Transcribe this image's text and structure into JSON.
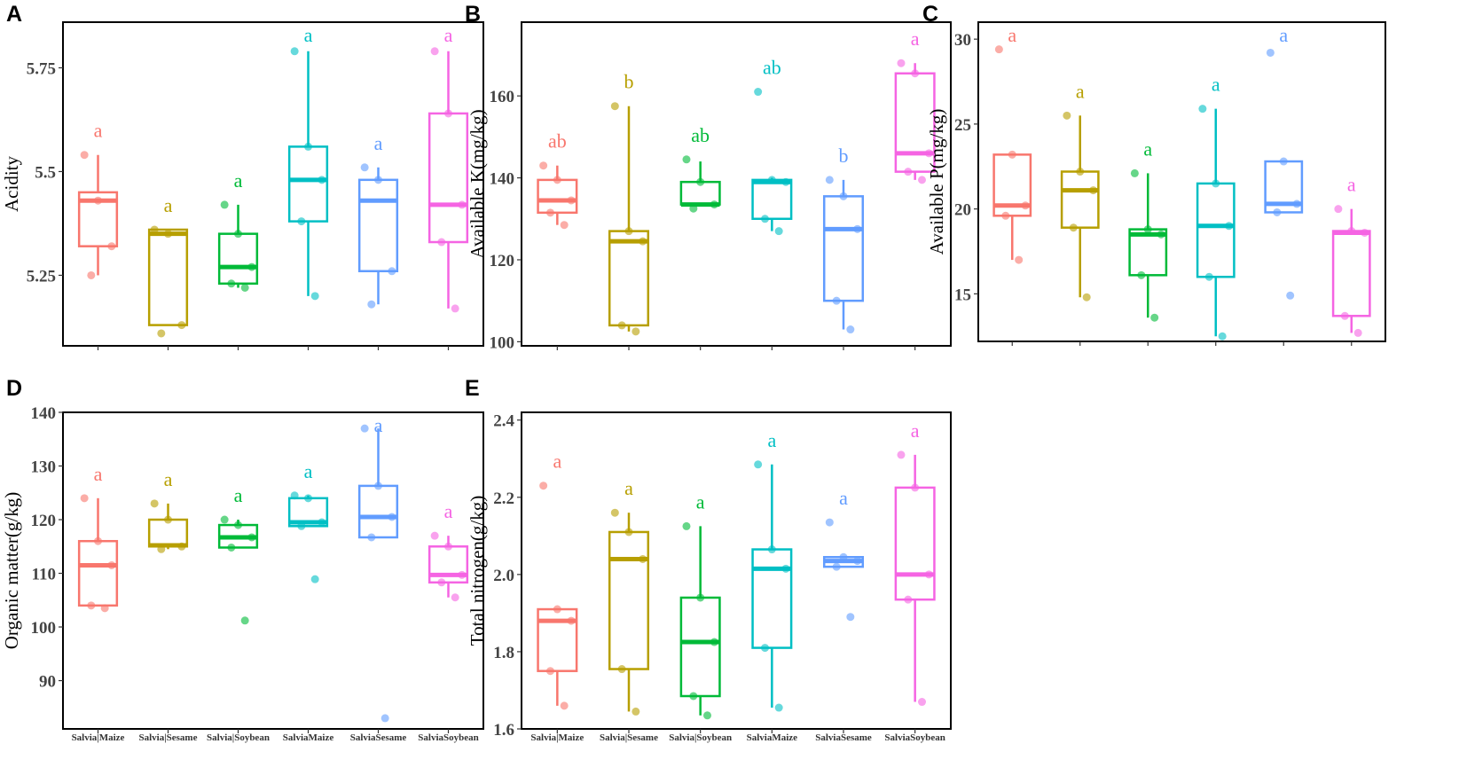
{
  "categories": [
    "Salvia|Maize",
    "Salvia|Sesame",
    "Salvia|Soybean",
    "SalviaMaize",
    "SalviaSesame",
    "SalviaSoybean"
  ],
  "colors": [
    "#F8766D",
    "#B79F00",
    "#00BA38",
    "#00BFC4",
    "#619CFF",
    "#F564E3"
  ],
  "chart_data": [
    {
      "panel": "A",
      "type": "box",
      "ylabel": "Acidity",
      "ylim": [
        5.08,
        5.86
      ],
      "yticks": [
        5.25,
        5.5,
        5.75
      ],
      "boxes": [
        {
          "q1": 5.32,
          "median": 5.43,
          "q3": 5.45,
          "wlow": 5.25,
          "whigh": 5.54,
          "points": [
            5.54,
            5.43,
            5.32,
            5.25
          ],
          "letter": "a"
        },
        {
          "q1": 5.13,
          "median": 5.35,
          "q3": 5.36,
          "wlow": 5.13,
          "whigh": 5.36,
          "points": [
            5.36,
            5.35,
            5.13,
            5.11
          ],
          "letter": "a"
        },
        {
          "q1": 5.23,
          "median": 5.27,
          "q3": 5.35,
          "wlow": 5.22,
          "whigh": 5.42,
          "points": [
            5.42,
            5.35,
            5.27,
            5.23,
            5.22
          ],
          "letter": "a"
        },
        {
          "q1": 5.38,
          "median": 5.48,
          "q3": 5.56,
          "wlow": 5.2,
          "whigh": 5.79,
          "points": [
            5.79,
            5.56,
            5.48,
            5.38,
            5.2
          ],
          "letter": "a"
        },
        {
          "q1": 5.26,
          "median": 5.43,
          "q3": 5.48,
          "wlow": 5.18,
          "whigh": 5.51,
          "points": [
            5.51,
            5.48,
            5.26,
            5.18
          ],
          "letter": "a"
        },
        {
          "q1": 5.33,
          "median": 5.42,
          "q3": 5.64,
          "wlow": 5.17,
          "whigh": 5.79,
          "points": [
            5.79,
            5.64,
            5.42,
            5.33,
            5.17
          ],
          "letter": "a"
        }
      ]
    },
    {
      "panel": "B",
      "type": "box",
      "ylabel": "Available K(mg/kg)",
      "ylim": [
        99,
        178
      ],
      "yticks": [
        100,
        120,
        140,
        160
      ],
      "boxes": [
        {
          "q1": 131.5,
          "median": 134.5,
          "q3": 139.5,
          "wlow": 128.5,
          "whigh": 143,
          "points": [
            143,
            139.5,
            134.5,
            131.5,
            128.5
          ],
          "letter": "ab"
        },
        {
          "q1": 104,
          "median": 124.5,
          "q3": 127,
          "wlow": 102.5,
          "whigh": 157.5,
          "points": [
            157.5,
            127,
            124.5,
            104,
            102.5
          ],
          "letter": "b"
        },
        {
          "q1": 133.5,
          "median": 133.5,
          "q3": 139,
          "wlow": 133.5,
          "whigh": 144,
          "points": [
            144.5,
            139,
            133.5,
            132.5
          ],
          "letter": "ab"
        },
        {
          "q1": 130,
          "median": 139,
          "q3": 139.5,
          "wlow": 127,
          "whigh": 140,
          "points": [
            161,
            139.5,
            139,
            130,
            127
          ],
          "letter": "ab"
        },
        {
          "q1": 110,
          "median": 127.5,
          "q3": 135.5,
          "wlow": 103,
          "whigh": 139.5,
          "points": [
            139.5,
            135.5,
            127.5,
            110,
            103
          ],
          "letter": "b"
        },
        {
          "q1": 141.5,
          "median": 146,
          "q3": 165.5,
          "wlow": 139.5,
          "whigh": 168,
          "points": [
            168,
            165.5,
            146,
            141.5,
            139.5
          ],
          "letter": "a"
        }
      ]
    },
    {
      "panel": "C",
      "type": "box",
      "ylabel": "Available P(mg/kg)",
      "ylim": [
        12.2,
        31
      ],
      "yticks": [
        15,
        20,
        25,
        30
      ],
      "boxes": [
        {
          "q1": 19.6,
          "median": 20.2,
          "q3": 23.2,
          "wlow": 17,
          "whigh": 23.2,
          "points": [
            29.4,
            23.2,
            20.2,
            19.6,
            17
          ],
          "letter": "a"
        },
        {
          "q1": 18.9,
          "median": 21.1,
          "q3": 22.2,
          "wlow": 14.8,
          "whigh": 25.5,
          "points": [
            25.5,
            22.2,
            21.1,
            18.9,
            14.8
          ],
          "letter": "a"
        },
        {
          "q1": 16.1,
          "median": 18.5,
          "q3": 18.8,
          "wlow": 13.6,
          "whigh": 22.1,
          "points": [
            22.1,
            18.8,
            18.5,
            16.1,
            13.6
          ],
          "letter": "a"
        },
        {
          "q1": 16,
          "median": 19,
          "q3": 21.5,
          "wlow": 12.5,
          "whigh": 25.9,
          "points": [
            25.9,
            21.5,
            19,
            16,
            12.5
          ],
          "letter": "a"
        },
        {
          "q1": 19.8,
          "median": 20.3,
          "q3": 22.8,
          "wlow": 19.8,
          "whigh": 22.8,
          "points": [
            29.2,
            22.8,
            20.3,
            19.8,
            14.9
          ],
          "letter": "a"
        },
        {
          "q1": 13.7,
          "median": 18.6,
          "q3": 18.7,
          "wlow": 12.7,
          "whigh": 20,
          "points": [
            20,
            18.7,
            18.6,
            13.7,
            12.7
          ],
          "letter": "a"
        }
      ]
    },
    {
      "panel": "D",
      "type": "box",
      "ylabel": "Organic matter(g/kg)",
      "ylim": [
        81,
        140
      ],
      "yticks": [
        90,
        100,
        110,
        120,
        130,
        140
      ],
      "boxes": [
        {
          "q1": 104,
          "median": 111.5,
          "q3": 116,
          "wlow": 104,
          "whigh": 124,
          "points": [
            124,
            116,
            111.5,
            104,
            103.5
          ],
          "letter": "a"
        },
        {
          "q1": 115,
          "median": 115.2,
          "q3": 120,
          "wlow": 114.5,
          "whigh": 123,
          "points": [
            123,
            120,
            115,
            114.5
          ],
          "letter": "a"
        },
        {
          "q1": 114.8,
          "median": 116.7,
          "q3": 119,
          "wlow": 114.8,
          "whigh": 120,
          "points": [
            120,
            119,
            116.7,
            114.8,
            101.2
          ],
          "letter": "a"
        },
        {
          "q1": 118.8,
          "median": 119.5,
          "q3": 124,
          "wlow": 118.8,
          "whigh": 124.5,
          "points": [
            124.5,
            124,
            119.5,
            118.8,
            108.9
          ],
          "letter": "a"
        },
        {
          "q1": 116.7,
          "median": 120.5,
          "q3": 126.3,
          "wlow": 116.7,
          "whigh": 137,
          "points": [
            137,
            126.3,
            120.5,
            116.7,
            83
          ],
          "letter": "a"
        },
        {
          "q1": 108.3,
          "median": 109.7,
          "q3": 115,
          "wlow": 105.5,
          "whigh": 117,
          "points": [
            117,
            115,
            109.7,
            108.3,
            105.5
          ],
          "letter": "a"
        }
      ]
    },
    {
      "panel": "E",
      "type": "box",
      "ylabel": "Total nitrogen(g/kg)",
      "ylim": [
        1.6,
        2.42
      ],
      "yticks": [
        1.6,
        1.8,
        2.0,
        2.2,
        2.4
      ],
      "boxes": [
        {
          "q1": 1.75,
          "median": 1.88,
          "q3": 1.91,
          "wlow": 1.66,
          "whigh": 1.91,
          "points": [
            2.23,
            1.91,
            1.88,
            1.75,
            1.66
          ],
          "letter": "a"
        },
        {
          "q1": 1.755,
          "median": 2.04,
          "q3": 2.11,
          "wlow": 1.645,
          "whigh": 2.16,
          "points": [
            2.16,
            2.11,
            2.04,
            1.755,
            1.645
          ],
          "letter": "a"
        },
        {
          "q1": 1.685,
          "median": 1.825,
          "q3": 1.94,
          "wlow": 1.635,
          "whigh": 2.125,
          "points": [
            2.125,
            1.94,
            1.825,
            1.685,
            1.635
          ],
          "letter": "a"
        },
        {
          "q1": 1.81,
          "median": 2.015,
          "q3": 2.065,
          "wlow": 1.655,
          "whigh": 2.285,
          "points": [
            2.285,
            2.065,
            2.015,
            1.81,
            1.655
          ],
          "letter": "a"
        },
        {
          "q1": 2.02,
          "median": 2.035,
          "q3": 2.045,
          "wlow": 2.02,
          "whigh": 2.045,
          "points": [
            2.135,
            2.045,
            2.035,
            2.02,
            1.89
          ],
          "letter": "a"
        },
        {
          "q1": 1.935,
          "median": 2.0,
          "q3": 2.225,
          "wlow": 1.67,
          "whigh": 2.31,
          "points": [
            2.31,
            2.225,
            2.0,
            1.935,
            1.67
          ],
          "letter": "a"
        }
      ]
    }
  ]
}
